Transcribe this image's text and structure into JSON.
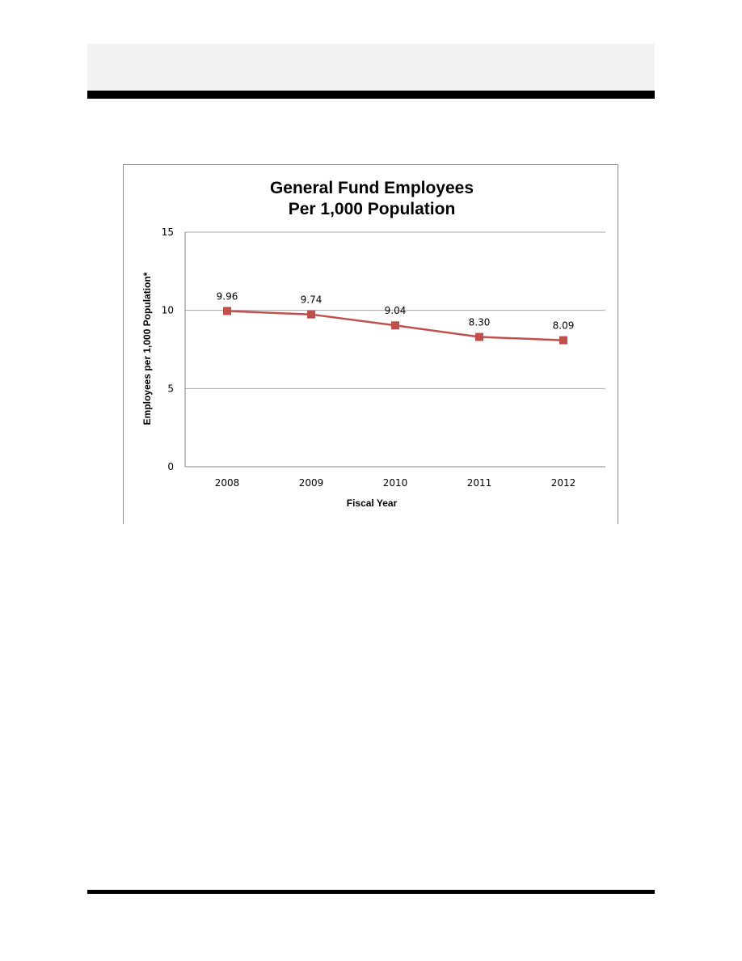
{
  "chart_data": {
    "type": "line",
    "title_lines": [
      "General Fund Employees",
      "Per 1,000 Population"
    ],
    "xlabel": "Fiscal Year",
    "ylabel": "Employees per 1,000 Population*",
    "categories": [
      "2008",
      "2009",
      "2010",
      "2011",
      "2012"
    ],
    "series": [
      {
        "values": [
          9.96,
          9.74,
          9.04,
          8.3,
          8.09
        ],
        "data_labels": [
          "9.96",
          "9.74",
          "9.04",
          "8.30",
          "8.09"
        ],
        "color": "#c0504d",
        "marker": "square"
      }
    ],
    "ylim": [
      0,
      15
    ],
    "yticks": [
      0,
      5,
      10,
      15
    ],
    "ytick_labels": [
      "0",
      "5",
      "10",
      "15"
    ],
    "grid": true,
    "gridline_color": "#a6a6a6",
    "legend": "none"
  }
}
